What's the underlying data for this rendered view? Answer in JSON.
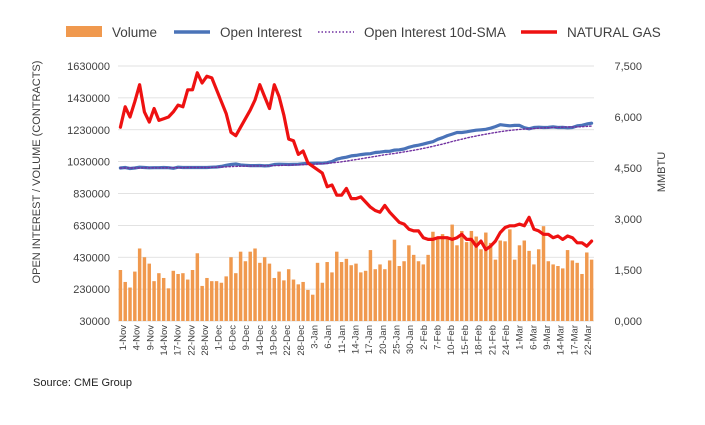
{
  "chart_data": {
    "type": "bar",
    "legend_position": "top",
    "legend": [
      {
        "label": "Volume",
        "kind": "bar",
        "color": "#f0994e"
      },
      {
        "label": "Open Interest",
        "kind": "line",
        "color": "#4a73b8"
      },
      {
        "label": "Open Interest 10d-SMA",
        "kind": "dotted",
        "color": "#7030a0"
      },
      {
        "label": "NATURAL GAS",
        "kind": "line",
        "color": "#ee1111"
      }
    ],
    "y_left": {
      "label": "OPEN INTEREST / VOLUME (CONTRACTS)",
      "min": 30000,
      "max": 1630000,
      "ticks": [
        30000,
        230000,
        430000,
        630000,
        830000,
        1030000,
        1230000,
        1430000,
        1630000
      ],
      "tick_labels": [
        "30000",
        "230000",
        "430000",
        "630000",
        "830000",
        "1030000",
        "1230000",
        "1430000",
        "1630000"
      ]
    },
    "y_right": {
      "label": "MMBTU",
      "min": 0,
      "max": 7500,
      "ticks": [
        0,
        1500,
        3000,
        4500,
        6000,
        7500
      ],
      "tick_labels": [
        "0,000",
        "1,500",
        "3,000",
        "4,500",
        "6,000",
        "7,500"
      ]
    },
    "x_tick_labels": [
      "1-Nov",
      "4-Nov",
      "9-Nov",
      "14-Nov",
      "17-Nov",
      "22-Nov",
      "28-Nov",
      "1-Dec",
      "6-Dec",
      "9-Dec",
      "14-Dec",
      "19-Dec",
      "22-Dec",
      "28-Dec",
      "3-Jan",
      "6-Jan",
      "11-Jan",
      "14-Jan",
      "17-Jan",
      "20-Jan",
      "25-Jan",
      "30-Jan",
      "2-Feb",
      "7-Feb",
      "10-Feb",
      "15-Feb",
      "18-Feb",
      "21-Feb",
      "24-Feb",
      "1-Mar",
      "6-Mar",
      "9-Mar",
      "14-Mar",
      "17-Mar",
      "22-Mar"
    ],
    "series": [
      {
        "name": "Volume",
        "axis": "left",
        "type": "bar",
        "color": "#f0994e",
        "values": [
          350000,
          275000,
          240000,
          340000,
          485000,
          430000,
          390000,
          280000,
          330000,
          300000,
          235000,
          345000,
          325000,
          330000,
          290000,
          350000,
          455000,
          250000,
          300000,
          280000,
          280000,
          270000,
          310000,
          430000,
          330000,
          465000,
          405000,
          465000,
          485000,
          395000,
          430000,
          390000,
          300000,
          340000,
          285000,
          355000,
          290000,
          260000,
          275000,
          225000,
          195000,
          395000,
          270000,
          400000,
          335000,
          465000,
          400000,
          420000,
          380000,
          390000,
          335000,
          345000,
          475000,
          355000,
          385000,
          355000,
          410000,
          540000,
          375000,
          405000,
          505000,
          445000,
          405000,
          385000,
          445000,
          590000,
          550000,
          575000,
          545000,
          635000,
          505000,
          595000,
          525000,
          595000,
          560000,
          480000,
          585000,
          520000,
          415000,
          535000,
          530000,
          605000,
          415000,
          505000,
          535000,
          470000,
          385000,
          480000,
          625000,
          405000,
          385000,
          375000,
          360000,
          475000,
          410000,
          395000,
          325000,
          460000,
          415000
        ]
      },
      {
        "name": "Open Interest",
        "axis": "left",
        "type": "line",
        "color": "#4a73b8",
        "values": [
          990000,
          993000,
          987000,
          990000,
          995000,
          993000,
          991000,
          992000,
          992000,
          993000,
          992000,
          988000,
          995000,
          993000,
          993000,
          993000,
          993000,
          993000,
          993000,
          995000,
          996000,
          1000000,
          1007000,
          1012000,
          1015000,
          1009000,
          1007000,
          1005000,
          1005000,
          1006000,
          1003000,
          1005000,
          1012000,
          1014000,
          1013000,
          1012000,
          1013000,
          1014000,
          1017000,
          1019000,
          1020000,
          1021000,
          1020000,
          1023000,
          1030000,
          1045000,
          1053000,
          1058000,
          1066000,
          1069000,
          1074000,
          1078000,
          1080000,
          1087000,
          1090000,
          1094000,
          1095000,
          1102000,
          1104000,
          1109000,
          1120000,
          1128000,
          1133000,
          1140000,
          1148000,
          1155000,
          1170000,
          1180000,
          1193000,
          1203000,
          1213000,
          1213000,
          1217000,
          1223000,
          1227000,
          1230000,
          1233000,
          1240000,
          1250000,
          1262000,
          1258000,
          1255000,
          1257000,
          1257000,
          1243000,
          1236000,
          1244000,
          1246000,
          1244000,
          1245000,
          1248000,
          1244000,
          1245000,
          1242000,
          1244000,
          1254000,
          1258000,
          1266000,
          1271000
        ]
      },
      {
        "name": "Open Interest 10d-SMA",
        "axis": "left",
        "type": "line",
        "style": "dotted",
        "color": "#7030a0",
        "values": [
          990000,
          990000,
          990000,
          990000,
          990000,
          991000,
          991000,
          991000,
          991000,
          991000,
          992000,
          992000,
          992000,
          992000,
          993000,
          993000,
          993000,
          993000,
          993000,
          994000,
          995000,
          996000,
          997000,
          999000,
          1000000,
          1001000,
          1002000,
          1002000,
          1003000,
          1003000,
          1004000,
          1004000,
          1005000,
          1006000,
          1007000,
          1008000,
          1009000,
          1010000,
          1011000,
          1012000,
          1013000,
          1015000,
          1017000,
          1019000,
          1022000,
          1025000,
          1029000,
          1033000,
          1038000,
          1043000,
          1048000,
          1053000,
          1058000,
          1063000,
          1068000,
          1073000,
          1077000,
          1081000,
          1086000,
          1091000,
          1096000,
          1101000,
          1107000,
          1113000,
          1119000,
          1126000,
          1133000,
          1140000,
          1148000,
          1156000,
          1164000,
          1171000,
          1178000,
          1185000,
          1191000,
          1197000,
          1202000,
          1208000,
          1213000,
          1218000,
          1222000,
          1226000,
          1229000,
          1232000,
          1234000,
          1236000,
          1238000,
          1240000,
          1242000,
          1243000,
          1244000,
          1245000,
          1246000,
          1247000,
          1247000,
          1248000,
          1249000,
          1251000,
          1253000
        ]
      },
      {
        "name": "NATURAL GAS",
        "axis": "right",
        "type": "line",
        "color": "#ee1111",
        "values": [
          5700,
          6300,
          6000,
          6450,
          6950,
          6150,
          5850,
          6250,
          5900,
          5950,
          6000,
          6150,
          6350,
          6300,
          6800,
          6800,
          7300,
          7000,
          7200,
          7150,
          6800,
          6450,
          6100,
          5550,
          5450,
          5700,
          5950,
          6200,
          6500,
          6950,
          6600,
          6250,
          6950,
          6600,
          6050,
          5350,
          5300,
          4900,
          5000,
          4650,
          4550,
          4450,
          4350,
          3950,
          4000,
          3700,
          3700,
          3900,
          3600,
          3600,
          3650,
          3500,
          3350,
          3250,
          3200,
          3400,
          3200,
          3050,
          2900,
          2850,
          2700,
          2650,
          2650,
          2450,
          2400,
          2400,
          2450,
          2450,
          2450,
          2400,
          2450,
          2550,
          2400,
          2400,
          2200,
          2350,
          2100,
          2200,
          2350,
          2600,
          2750,
          2800,
          2800,
          2850,
          2800,
          3050,
          2700,
          2650,
          2550,
          2550,
          2450,
          2500,
          2400,
          2500,
          2450,
          2300,
          2300,
          2200,
          2350
        ]
      }
    ]
  },
  "source_text": "Source: CME Group"
}
